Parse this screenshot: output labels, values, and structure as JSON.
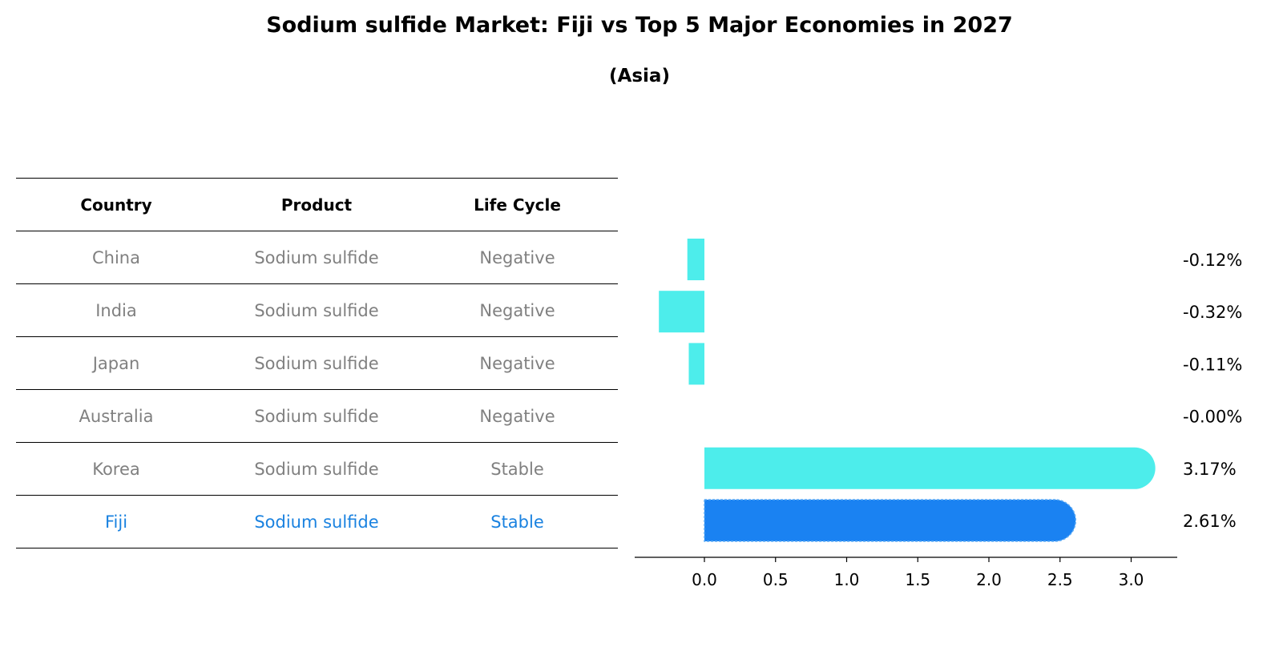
{
  "title": "Sodium sulfide Market: Fiji vs Top 5 Major Economies in 2027",
  "subtitle": "(Asia)",
  "table": {
    "headers": [
      "Country",
      "Product",
      "Life Cycle"
    ],
    "rows": [
      [
        "China",
        "Sodium sulfide",
        "Negative"
      ],
      [
        "India",
        "Sodium sulfide",
        "Negative"
      ],
      [
        "Japan",
        "Sodium sulfide",
        "Negative"
      ],
      [
        "Australia",
        "Sodium sulfide",
        "Negative"
      ],
      [
        "Korea",
        "Sodium sulfide",
        "Stable"
      ],
      [
        "Fiji",
        "Sodium sulfide",
        "Stable"
      ]
    ],
    "highlight_row": 5
  },
  "colors": {
    "bar": "#4dedeb",
    "highlight_bar": "#1a82f2",
    "muted_text": "#808080",
    "highlight_text": "#1a82e0"
  },
  "chart_data": {
    "type": "bar",
    "orientation": "horizontal",
    "categories": [
      "China",
      "India",
      "Japan",
      "Australia",
      "Korea",
      "Fiji"
    ],
    "values": [
      -0.12,
      -0.32,
      -0.11,
      -0.0,
      3.17,
      2.61
    ],
    "value_labels": [
      "-0.12%",
      "-0.32%",
      "-0.11%",
      "-0.00%",
      "3.17%",
      "2.61%"
    ],
    "highlight_index": 5,
    "xlim": [
      -0.5,
      3.35
    ],
    "xticks": [
      0.0,
      0.5,
      1.0,
      1.5,
      2.0,
      2.5,
      3.0
    ],
    "xtick_labels": [
      "0.0",
      "0.5",
      "1.0",
      "1.5",
      "2.0",
      "2.5",
      "3.0"
    ],
    "grid": false
  }
}
